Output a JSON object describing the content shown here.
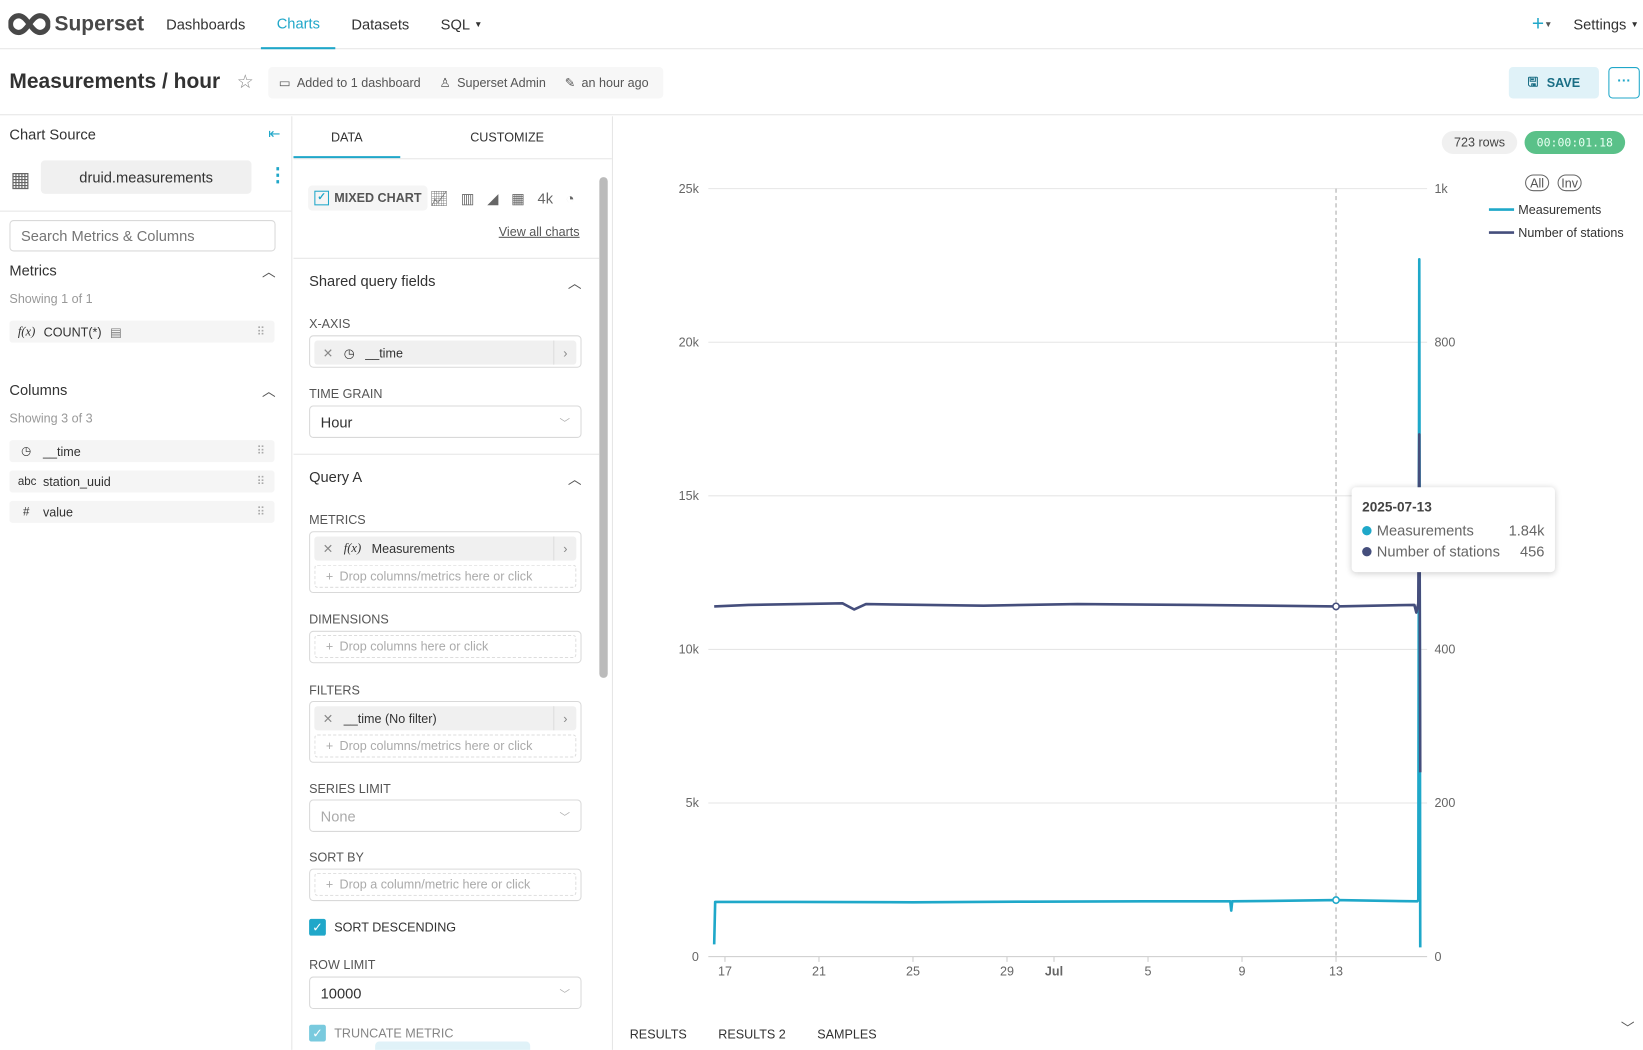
{
  "nav": {
    "brand": "Superset",
    "items": [
      "Dashboards",
      "Charts",
      "Datasets",
      "SQL"
    ],
    "active": "Charts",
    "plus": "+",
    "settings": "Settings"
  },
  "header": {
    "title": "Measurements / hour",
    "dashboards": "Added to 1 dashboard",
    "owner": "Superset Admin",
    "modified": "an hour ago",
    "save": "SAVE",
    "more": "···"
  },
  "source": {
    "title": "Chart Source",
    "dataset": "druid.measurements",
    "search_placeholder": "Search Metrics & Columns",
    "metrics_title": "Metrics",
    "metrics_count": "Showing 1 of 1",
    "metrics": [
      {
        "icon": "f(x)",
        "name": "COUNT(*)"
      }
    ],
    "columns_title": "Columns",
    "columns_count": "Showing 3 of 3",
    "columns": [
      {
        "icon": "clock-icon",
        "glyph": "◷",
        "name": "__time"
      },
      {
        "icon": "string-icon",
        "glyph": "abc",
        "name": "station_uuid"
      },
      {
        "icon": "number-icon",
        "glyph": "#",
        "name": "value"
      }
    ]
  },
  "control": {
    "tabs": [
      "DATA",
      "CUSTOMIZE"
    ],
    "active_tab": "DATA",
    "chart_type": "MIXED CHART",
    "fourk": "4k",
    "view_all": "View all charts",
    "shared_title": "Shared query fields",
    "xaxis_label": "X-AXIS",
    "xaxis_value": "__time",
    "timegrain_label": "TIME GRAIN",
    "timegrain_value": "Hour",
    "query_title": "Query A",
    "metrics_label": "METRICS",
    "metric_value": "Measurements",
    "drop_cols_metrics": "Drop columns/metrics here or click",
    "dimensions_label": "DIMENSIONS",
    "drop_cols": "Drop columns here or click",
    "filters_label": "FILTERS",
    "filter_value": "__time (No filter)",
    "series_limit_label": "SERIES LIMIT",
    "series_limit_placeholder": "None",
    "sort_by_label": "SORT BY",
    "drop_sort": "Drop a column/metric here or click",
    "sort_desc": "SORT DESCENDING",
    "sort_desc_checked": true,
    "row_limit_label": "ROW LIMIT",
    "row_limit_value": "10000",
    "truncate": "TRUNCATE METRIC",
    "truncate_checked": true
  },
  "results": {
    "rows": "723 rows",
    "time": "00:00:01.18",
    "tabs": [
      "RESULTS",
      "RESULTS 2",
      "SAMPLES"
    ]
  },
  "chart_data": {
    "type": "line",
    "x_ticks": [
      "17",
      "21",
      "25",
      "29",
      "Jul",
      "5",
      "9",
      "13"
    ],
    "x_tick_dates": [
      "2025-06-17",
      "2025-06-21",
      "2025-06-25",
      "2025-06-29",
      "2025-07-01",
      "2025-07-05",
      "2025-07-09",
      "2025-07-13"
    ],
    "x_range": [
      "2025-06-16T07:00",
      "2025-07-16T21:00"
    ],
    "y_left": {
      "ticks": [
        "0",
        "5k",
        "10k",
        "15k",
        "20k",
        "25k"
      ],
      "range": [
        0,
        25000
      ]
    },
    "y_right": {
      "ticks": [
        "0",
        "200",
        "400",
        "600",
        "800",
        "1k"
      ],
      "range": [
        0,
        1000
      ]
    },
    "grid": true,
    "legend": "top-right",
    "legend_buttons": [
      "All",
      "Inv"
    ],
    "series": [
      {
        "name": "Measurements",
        "axis": "left",
        "color": "#1FA8C9",
        "points": [
          [
            "2025-06-16T13:00",
            400
          ],
          [
            "2025-06-16T14:00",
            1780
          ],
          [
            "2025-06-20T00:00",
            1780
          ],
          [
            "2025-06-25T00:00",
            1770
          ],
          [
            "2025-06-30T00:00",
            1790
          ],
          [
            "2025-07-05T00:00",
            1800
          ],
          [
            "2025-07-08T12:00",
            1800
          ],
          [
            "2025-07-08T13:00",
            1500
          ],
          [
            "2025-07-08T14:00",
            1800
          ],
          [
            "2025-07-13T00:00",
            1840
          ],
          [
            "2025-07-16T11:00",
            1800
          ],
          [
            "2025-07-16T12:00",
            1850
          ],
          [
            "2025-07-16T13:00",
            22700
          ],
          [
            "2025-07-16T14:00",
            300
          ]
        ]
      },
      {
        "name": "Number of stations",
        "axis": "right",
        "color": "#454E7C",
        "points": [
          [
            "2025-06-16T13:00",
            456
          ],
          [
            "2025-06-18T00:00",
            458
          ],
          [
            "2025-06-22T00:00",
            460
          ],
          [
            "2025-06-22T12:00",
            452
          ],
          [
            "2025-06-23T00:00",
            459
          ],
          [
            "2025-06-28T00:00",
            457
          ],
          [
            "2025-07-02T00:00",
            459
          ],
          [
            "2025-07-07T00:00",
            458
          ],
          [
            "2025-07-13T00:00",
            456
          ],
          [
            "2025-07-16T08:00",
            458
          ],
          [
            "2025-07-16T10:00",
            448
          ],
          [
            "2025-07-16T12:00",
            460
          ],
          [
            "2025-07-16T13:00",
            680
          ],
          [
            "2025-07-16T14:00",
            240
          ]
        ]
      }
    ],
    "tooltip": {
      "date": "2025-07-13",
      "rows": [
        {
          "name": "Measurements",
          "value": "1.84k"
        },
        {
          "name": "Number of stations",
          "value": "456"
        }
      ]
    }
  }
}
